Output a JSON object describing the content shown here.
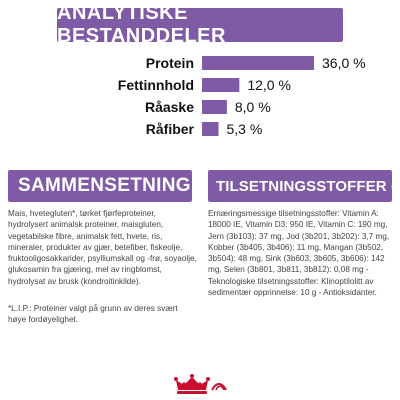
{
  "header": {
    "title": "ANALYTISKE BESTANDDELER"
  },
  "chart_data": {
    "type": "bar",
    "orientation": "horizontal",
    "categories": [
      "Protein",
      "Fettinnhold",
      "Råaske",
      "Råfiber"
    ],
    "values": [
      36.0,
      12.0,
      8.0,
      5.3
    ],
    "value_labels": [
      "36,0 %",
      "12,0 %",
      "8,0 %",
      "5,3 %"
    ],
    "unit": "%",
    "xlim": [
      0,
      40
    ],
    "bar_color": "#7f5ba5",
    "grid": false
  },
  "composition": {
    "title": "SAMMENSETNING",
    "text": "Mais, hvetegluten*, tørket fjørfeproteiner, hydrolysert animalsk proteiner, maisgluten, vegetabilske fibre, animalsk fett, hvete, ris, mineraler, produkter av gjær, betefiber, fiskeolje, fruktooligosakkarider, psylliumskall og -frø, soyaolje, glukosamin fra gjæring, mel av ringblomst, hydrolysat av brusk (kondroitinkilde).",
    "footnote": "*L.I.P.: Proteiner valgt på grunn av deres svært høye fordøyelighet."
  },
  "additives": {
    "title": "TILSETNINGSSTOFFER (pr. kg)",
    "text": "Ernæringsmessige tilsetningsstoffer: Vitamin A: 18000 IE, Vitamin D3: 950 IE, Vitamin C: 190 mg, Jern (3b103): 37 mg, Jod (3b201, 3b202): 3,7 mg, Kobber (3b405, 3b406): 11 mg, Mangan (3b502, 3b504): 48 mg, Sink (3b603, 3b605, 3b606): 142 mg, Selen (3b801, 3b811, 3b812): 0,08 mg - Teknologiske tilsetningsstoffer: Klinoptilolitt av sedimentær opprinnelse: 10 g - Antioksidanter."
  },
  "colors": {
    "accent": "#7f5ba5",
    "logo_red": "#c8102e"
  },
  "logo": {
    "icon": "royal-crown-icon"
  }
}
